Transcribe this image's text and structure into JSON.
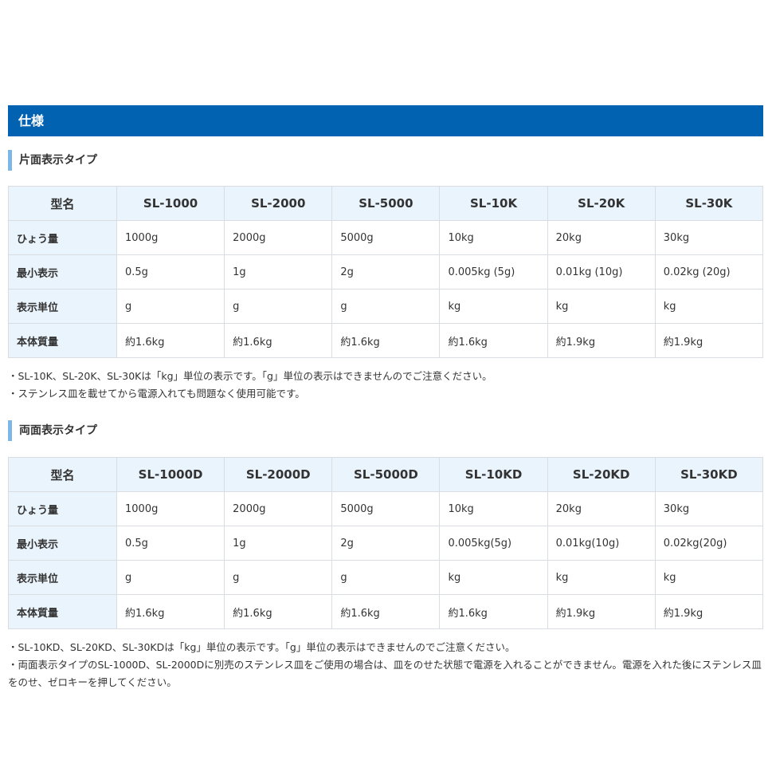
{
  "section_title": "仕様",
  "tables": [
    {
      "subtitle": "片面表示タイプ",
      "header": [
        "型名",
        "SL-1000",
        "SL-2000",
        "SL-5000",
        "SL-10K",
        "SL-20K",
        "SL-30K"
      ],
      "rows": [
        [
          "ひょう量",
          "1000g",
          "2000g",
          "5000g",
          "10kg",
          "20kg",
          "30kg"
        ],
        [
          "最小表示",
          "0.5g",
          "1g",
          "2g",
          "0.005kg (5g)",
          "0.01kg (10g)",
          "0.02kg (20g)"
        ],
        [
          "表示単位",
          "g",
          "g",
          "g",
          "kg",
          "kg",
          "kg"
        ],
        [
          "本体質量",
          "約1.6kg",
          "約1.6kg",
          "約1.6kg",
          "約1.6kg",
          "約1.9kg",
          "約1.9kg"
        ]
      ],
      "notes": [
        "・SL-10K、SL-20K、SL-30Kは「kg」単位の表示です。「g」単位の表示はできませんのでご注意ください。",
        "・ステンレス皿を載せてから電源入れても問題なく使用可能です。"
      ]
    },
    {
      "subtitle": "両面表示タイプ",
      "header": [
        "型名",
        "SL-1000D",
        "SL-2000D",
        "SL-5000D",
        "SL-10KD",
        "SL-20KD",
        "SL-30KD"
      ],
      "rows": [
        [
          "ひょう量",
          "1000g",
          "2000g",
          "5000g",
          "10kg",
          "20kg",
          "30kg"
        ],
        [
          "最小表示",
          "0.5g",
          "1g",
          "2g",
          "0.005kg(5g)",
          "0.01kg(10g)",
          "0.02kg(20g)"
        ],
        [
          "表示単位",
          "g",
          "g",
          "g",
          "kg",
          "kg",
          "kg"
        ],
        [
          "本体質量",
          "約1.6kg",
          "約1.6kg",
          "約1.6kg",
          "約1.6kg",
          "約1.9kg",
          "約1.9kg"
        ]
      ],
      "notes": [
        "・SL-10KD、SL-20KD、SL-30KDは「kg」単位の表示です。「g」単位の表示はできませんのでご注意ください。",
        "・両面表示タイプのSL-1000D、SL-2000Dに別売のステンレス皿をご使用の場合は、皿をのせた状態で電源を入れることができません。電源を入れた後にステンレス皿をのせ、ゼロキーを押してください。"
      ]
    }
  ]
}
